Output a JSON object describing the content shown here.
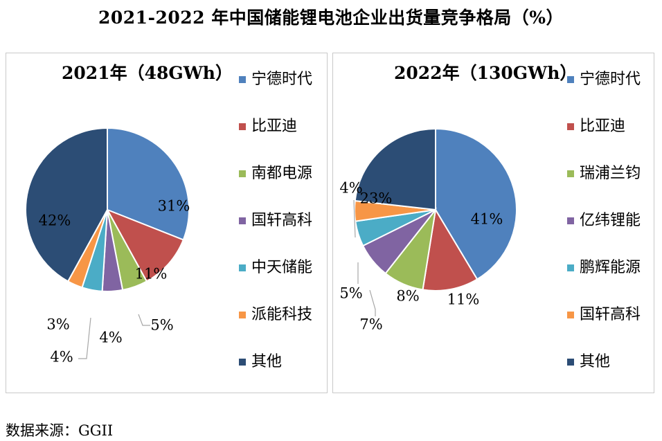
{
  "title": "2021-2022 年中国储能锂电池企业出货量竞争格局（%）",
  "source": "数据来源：GGII",
  "colors": {
    "blue": "#4f81bd",
    "red": "#c0504d",
    "green": "#9bbb59",
    "purple": "#8064a2",
    "cyan": "#4bacc6",
    "orange": "#f79646",
    "navy": "#2c4d75"
  },
  "chart_data": [
    {
      "type": "pie",
      "title": "2021年（48GWh）",
      "legend_position": "right",
      "start_angle_deg": 0,
      "direction": "clockwise",
      "slices": [
        {
          "label": "宁德时代",
          "value": 31,
          "text": "31%",
          "color": "#4f81bd",
          "label_style": "inside"
        },
        {
          "label": "比亚迪",
          "value": 11,
          "text": "11%",
          "color": "#c0504d",
          "label_style": "inside"
        },
        {
          "label": "南都电源",
          "value": 5,
          "text": "5%",
          "color": "#9bbb59",
          "label_style": "leader"
        },
        {
          "label": "国轩高科",
          "value": 4,
          "text": "4%",
          "color": "#8064a2",
          "label_style": "outside"
        },
        {
          "label": "中天储能",
          "value": 4,
          "text": "4%",
          "color": "#4bacc6",
          "label_style": "leader"
        },
        {
          "label": "派能科技",
          "value": 3,
          "text": "3%",
          "color": "#f79646",
          "label_style": "outside"
        },
        {
          "label": "其他",
          "value": 42,
          "text": "42%",
          "color": "#2c4d75",
          "label_style": "inside"
        }
      ]
    },
    {
      "type": "pie",
      "title": "2022年（130GWh）",
      "legend_position": "right",
      "start_angle_deg": 0,
      "direction": "clockwise",
      "slices": [
        {
          "label": "宁德时代",
          "value": 41,
          "text": "41%",
          "color": "#4f81bd",
          "label_style": "inside"
        },
        {
          "label": "比亚迪",
          "value": 11,
          "text": "11%",
          "color": "#c0504d",
          "label_style": "inside"
        },
        {
          "label": "瑞浦兰钧",
          "value": 8,
          "text": "8%",
          "color": "#9bbb59",
          "label_style": "inside"
        },
        {
          "label": "亿纬锂能",
          "value": 7,
          "text": "7%",
          "color": "#8064a2",
          "label_style": "leader"
        },
        {
          "label": "鹏辉能源",
          "value": 5,
          "text": "5%",
          "color": "#4bacc6",
          "label_style": "leader"
        },
        {
          "label": "国轩高科",
          "value": 4,
          "text": "4%",
          "color": "#f79646",
          "label_style": "leader"
        },
        {
          "label": "其他",
          "value": 23,
          "text": "23%",
          "color": "#2c4d75",
          "label_style": "inside"
        }
      ]
    }
  ]
}
